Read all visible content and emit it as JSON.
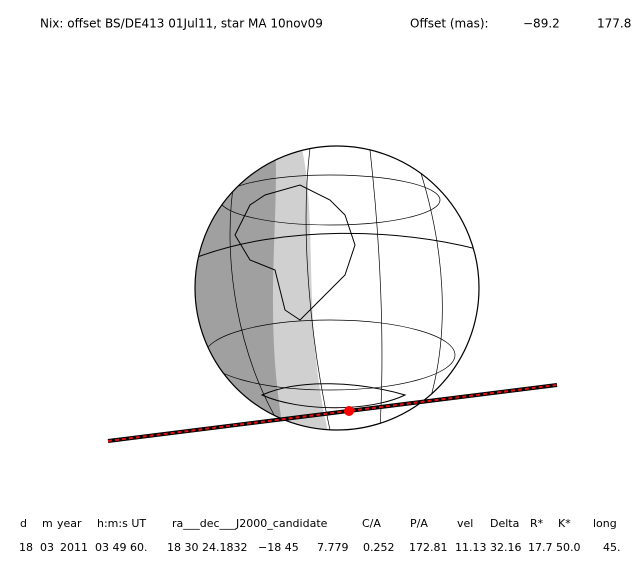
{
  "header": {
    "title": "Nix: offset BS/DE413 01Jul11, star MA 10nov09",
    "offset_label": "Offset (mas):",
    "offset_x": "−89.2",
    "offset_y": "177.8"
  },
  "table": {
    "columns": [
      "d",
      "m",
      "year",
      "h:m:s UT",
      "ra___dec___J2000_candidate",
      "C/A",
      "P/A",
      "vel",
      "Delta",
      "R*",
      "K*",
      "long"
    ],
    "row": [
      "18",
      "03",
      "2011",
      "03 49 60.",
      "18 30 24.1832",
      "−18 45",
      "7.779",
      "0.252",
      "172.81",
      "11.13",
      "32.16",
      "17.7",
      "50.0",
      "45."
    ]
  }
}
